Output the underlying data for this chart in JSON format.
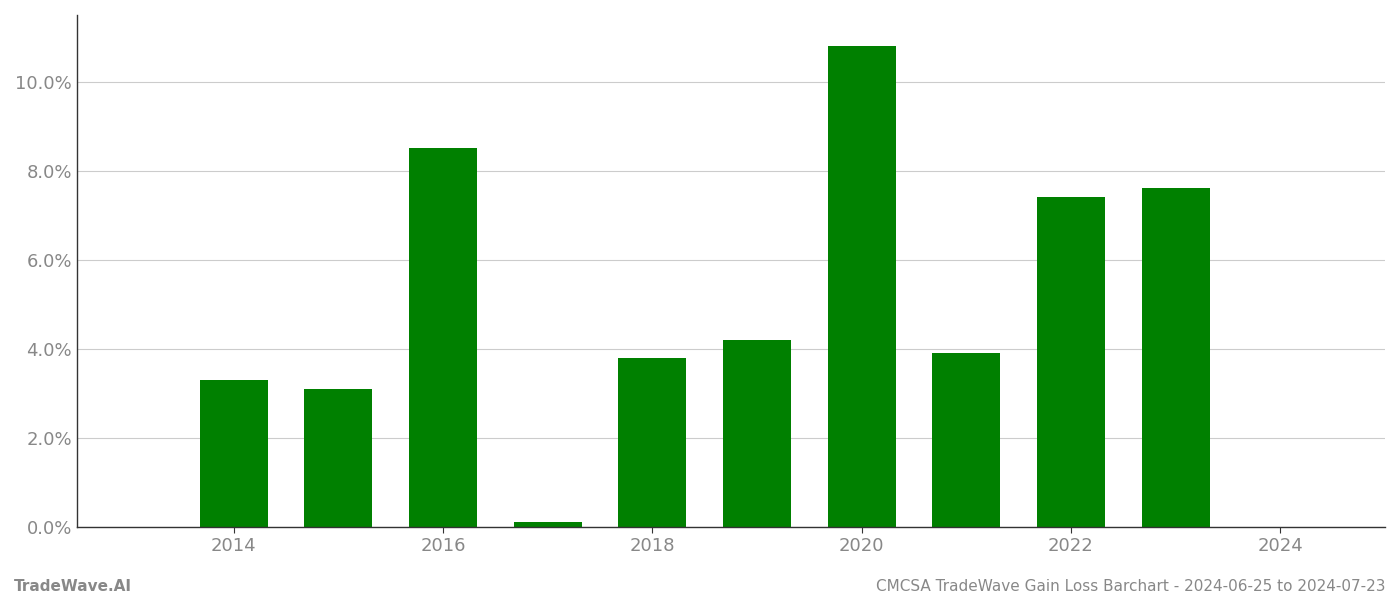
{
  "years": [
    2014,
    2015,
    2016,
    2017,
    2018,
    2019,
    2020,
    2021,
    2022,
    2023
  ],
  "values": [
    0.033,
    0.031,
    0.085,
    0.001,
    0.038,
    0.042,
    0.108,
    0.039,
    0.074,
    0.076
  ],
  "bar_color": "#008000",
  "background_color": "#ffffff",
  "grid_color": "#cccccc",
  "axis_color": "#333333",
  "tick_label_color": "#888888",
  "ylim": [
    0,
    0.115
  ],
  "yticks": [
    0.0,
    0.02,
    0.04,
    0.06,
    0.08,
    0.1
  ],
  "xtick_labels": [
    "2014",
    "2016",
    "2018",
    "2020",
    "2022",
    "2024"
  ],
  "xtick_positions": [
    2014,
    2016,
    2018,
    2020,
    2022,
    2024
  ],
  "xlim": [
    2012.5,
    2025.0
  ],
  "footer_left": "TradeWave.AI",
  "footer_right": "CMCSA TradeWave Gain Loss Barchart - 2024-06-25 to 2024-07-23",
  "footer_color": "#888888",
  "footer_fontsize": 11,
  "tick_fontsize": 13,
  "bar_width": 0.65
}
